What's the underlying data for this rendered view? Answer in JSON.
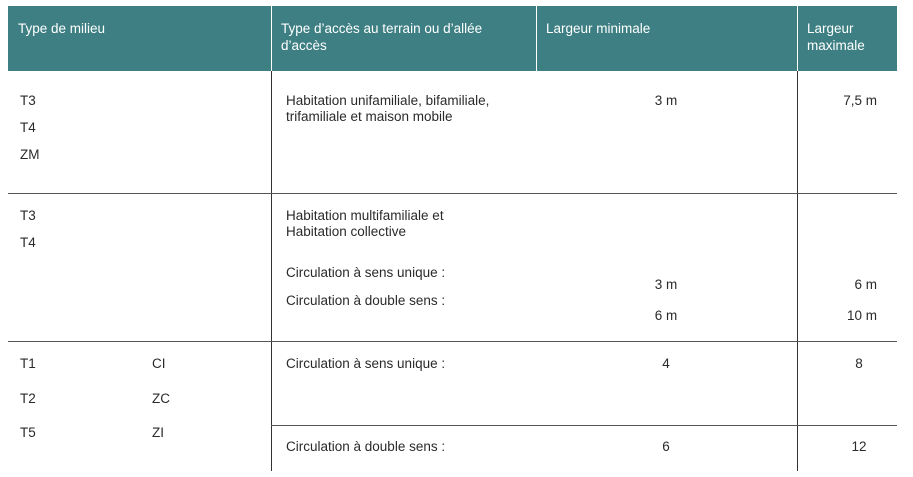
{
  "table": {
    "headers": [
      "Type de milieu",
      "Type d’accès au terrain ou d’allée d’accès",
      "Largeur minimale",
      "Largeur maximale"
    ],
    "rows": [
      {
        "milieu": [
          "T3",
          "T4",
          "ZM"
        ],
        "acces": [
          "Habitation unifamiliale, bifamiliale, trifamiliale et maison mobile"
        ],
        "min": [
          "3 m"
        ],
        "max": [
          "7,5 m"
        ]
      },
      {
        "milieu": [
          "T3",
          "T4"
        ],
        "acces": [
          "Habitation multifamiliale et Habitation collective",
          "Circulation à sens unique :",
          "Circulation à double sens :"
        ],
        "min": [
          "3 m",
          "6 m"
        ],
        "max": [
          "6 m",
          "10 m"
        ]
      },
      {
        "milieu": [
          "T1",
          "T2",
          "T5"
        ],
        "milieu_col2": [
          "CI",
          "ZC",
          "ZI"
        ],
        "acces": [
          "Circulation à sens unique :",
          "Circulation à double sens :"
        ],
        "min": [
          "4",
          "6"
        ],
        "max": [
          "8",
          "12"
        ]
      }
    ]
  }
}
